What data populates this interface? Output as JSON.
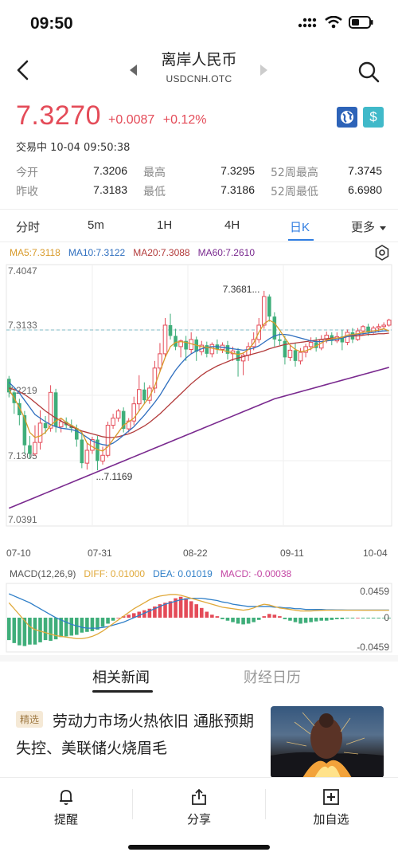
{
  "status_bar": {
    "time": "09:50"
  },
  "nav": {
    "title": "离岸人民币",
    "subtitle": "USDCNH.OTC"
  },
  "quote": {
    "price": "7.3270",
    "change": "+0.0087",
    "change_pct": "+0.12%",
    "trade_status": "交易中 10-04 09:50:38",
    "up_color": "#e44b58",
    "down_color": "#3fae7a"
  },
  "stats": {
    "open_label": "今开",
    "open": "7.3206",
    "high_label": "最高",
    "high": "7.3295",
    "high52_label": "52周最高",
    "high52": "7.3745",
    "prev_close_label": "昨收",
    "prev_close": "7.3183",
    "low_label": "最低",
    "low": "7.3186",
    "low52_label": "52周最低",
    "low52": "6.6980"
  },
  "tabs": {
    "items": [
      "分时",
      "5m",
      "1H",
      "4H",
      "日K",
      "更多"
    ],
    "active": "日K"
  },
  "ma_legend": {
    "ma5": "MA5:7.3118",
    "ma10": "MA10:7.3122",
    "ma20": "MA20:7.3088",
    "ma60": "MA60:7.2610",
    "colors": {
      "ma5": "#d89a2a",
      "ma10": "#2f6fbf",
      "ma20": "#b23a3a",
      "ma60": "#7a2a8f"
    }
  },
  "chart_data": [
    {
      "type": "candlestick",
      "y_tick_labels": [
        "7.4047",
        "7.3133",
        "7.2219",
        "7.1305",
        "7.0391"
      ],
      "ylim": [
        7.0391,
        7.4047
      ],
      "x_tick_labels": [
        "07-10",
        "07-31",
        "08-22",
        "09-11",
        "10-04"
      ],
      "annotations": {
        "max_label": "7.3681...",
        "min_label": "...7.1169",
        "last_price_line": 7.3133
      },
      "candles": [
        {
          "o": 7.245,
          "c": 7.226,
          "h": 7.249,
          "l": 7.219
        },
        {
          "o": 7.226,
          "c": 7.211,
          "h": 7.232,
          "l": 7.196
        },
        {
          "o": 7.211,
          "c": 7.194,
          "h": 7.217,
          "l": 7.18
        },
        {
          "o": 7.194,
          "c": 7.152,
          "h": 7.2,
          "l": 7.14
        },
        {
          "o": 7.152,
          "c": 7.14,
          "h": 7.165,
          "l": 7.133
        },
        {
          "o": 7.14,
          "c": 7.156,
          "h": 7.18,
          "l": 7.137
        },
        {
          "o": 7.156,
          "c": 7.183,
          "h": 7.201,
          "l": 7.146
        },
        {
          "o": 7.183,
          "c": 7.176,
          "h": 7.193,
          "l": 7.168
        },
        {
          "o": 7.176,
          "c": 7.226,
          "h": 7.236,
          "l": 7.171
        },
        {
          "o": 7.226,
          "c": 7.178,
          "h": 7.231,
          "l": 7.17
        },
        {
          "o": 7.178,
          "c": 7.185,
          "h": 7.19,
          "l": 7.17
        },
        {
          "o": 7.185,
          "c": 7.18,
          "h": 7.191,
          "l": 7.176
        },
        {
          "o": 7.18,
          "c": 7.176,
          "h": 7.188,
          "l": 7.17
        },
        {
          "o": 7.176,
          "c": 7.16,
          "h": 7.181,
          "l": 7.15
        },
        {
          "o": 7.16,
          "c": 7.127,
          "h": 7.171,
          "l": 7.12
        },
        {
          "o": 7.127,
          "c": 7.145,
          "h": 7.155,
          "l": 7.118
        },
        {
          "o": 7.145,
          "c": 7.16,
          "h": 7.164,
          "l": 7.14
        },
        {
          "o": 7.16,
          "c": 7.13,
          "h": 7.165,
          "l": 7.117
        },
        {
          "o": 7.13,
          "c": 7.138,
          "h": 7.15,
          "l": 7.125
        },
        {
          "o": 7.138,
          "c": 7.18,
          "h": 7.185,
          "l": 7.135
        },
        {
          "o": 7.18,
          "c": 7.19,
          "h": 7.196,
          "l": 7.175
        },
        {
          "o": 7.19,
          "c": 7.2,
          "h": 7.203,
          "l": 7.185
        },
        {
          "o": 7.2,
          "c": 7.175,
          "h": 7.205,
          "l": 7.17
        },
        {
          "o": 7.175,
          "c": 7.186,
          "h": 7.19,
          "l": 7.17
        },
        {
          "o": 7.186,
          "c": 7.21,
          "h": 7.22,
          "l": 7.18
        },
        {
          "o": 7.21,
          "c": 7.23,
          "h": 7.25,
          "l": 7.2
        },
        {
          "o": 7.23,
          "c": 7.215,
          "h": 7.24,
          "l": 7.21
        },
        {
          "o": 7.215,
          "c": 7.232,
          "h": 7.236,
          "l": 7.21
        },
        {
          "o": 7.232,
          "c": 7.26,
          "h": 7.27,
          "l": 7.225
        },
        {
          "o": 7.26,
          "c": 7.28,
          "h": 7.295,
          "l": 7.255
        },
        {
          "o": 7.28,
          "c": 7.32,
          "h": 7.33,
          "l": 7.275
        },
        {
          "o": 7.32,
          "c": 7.305,
          "h": 7.336,
          "l": 7.3
        },
        {
          "o": 7.305,
          "c": 7.29,
          "h": 7.315,
          "l": 7.285
        },
        {
          "o": 7.29,
          "c": 7.298,
          "h": 7.3,
          "l": 7.275
        },
        {
          "o": 7.298,
          "c": 7.286,
          "h": 7.305,
          "l": 7.27
        },
        {
          "o": 7.286,
          "c": 7.3,
          "h": 7.31,
          "l": 7.28
        },
        {
          "o": 7.3,
          "c": 7.283,
          "h": 7.304,
          "l": 7.27
        },
        {
          "o": 7.283,
          "c": 7.292,
          "h": 7.298,
          "l": 7.278
        },
        {
          "o": 7.292,
          "c": 7.28,
          "h": 7.297,
          "l": 7.275
        },
        {
          "o": 7.28,
          "c": 7.293,
          "h": 7.296,
          "l": 7.275
        },
        {
          "o": 7.293,
          "c": 7.286,
          "h": 7.3,
          "l": 7.28
        },
        {
          "o": 7.286,
          "c": 7.292,
          "h": 7.296,
          "l": 7.281
        },
        {
          "o": 7.292,
          "c": 7.28,
          "h": 7.298,
          "l": 7.272
        },
        {
          "o": 7.28,
          "c": 7.284,
          "h": 7.29,
          "l": 7.27
        },
        {
          "o": 7.284,
          "c": 7.27,
          "h": 7.288,
          "l": 7.248
        },
        {
          "o": 7.27,
          "c": 7.278,
          "h": 7.282,
          "l": 7.25
        },
        {
          "o": 7.278,
          "c": 7.29,
          "h": 7.296,
          "l": 7.27
        },
        {
          "o": 7.29,
          "c": 7.3,
          "h": 7.31,
          "l": 7.285
        },
        {
          "o": 7.3,
          "c": 7.32,
          "h": 7.33,
          "l": 7.295
        },
        {
          "o": 7.32,
          "c": 7.36,
          "h": 7.368,
          "l": 7.315
        },
        {
          "o": 7.36,
          "c": 7.332,
          "h": 7.363,
          "l": 7.325
        },
        {
          "o": 7.332,
          "c": 7.3,
          "h": 7.338,
          "l": 7.29
        },
        {
          "o": 7.3,
          "c": 7.298,
          "h": 7.31,
          "l": 7.292
        },
        {
          "o": 7.298,
          "c": 7.275,
          "h": 7.305,
          "l": 7.265
        },
        {
          "o": 7.275,
          "c": 7.285,
          "h": 7.292,
          "l": 7.27
        },
        {
          "o": 7.285,
          "c": 7.27,
          "h": 7.295,
          "l": 7.262
        },
        {
          "o": 7.27,
          "c": 7.282,
          "h": 7.288,
          "l": 7.265
        },
        {
          "o": 7.282,
          "c": 7.29,
          "h": 7.294,
          "l": 7.275
        },
        {
          "o": 7.29,
          "c": 7.296,
          "h": 7.303,
          "l": 7.285
        },
        {
          "o": 7.296,
          "c": 7.288,
          "h": 7.303,
          "l": 7.283
        },
        {
          "o": 7.288,
          "c": 7.3,
          "h": 7.306,
          "l": 7.285
        },
        {
          "o": 7.3,
          "c": 7.306,
          "h": 7.311,
          "l": 7.295
        },
        {
          "o": 7.306,
          "c": 7.298,
          "h": 7.31,
          "l": 7.292
        },
        {
          "o": 7.298,
          "c": 7.304,
          "h": 7.31,
          "l": 7.295
        },
        {
          "o": 7.304,
          "c": 7.296,
          "h": 7.313,
          "l": 7.285
        },
        {
          "o": 7.296,
          "c": 7.31,
          "h": 7.314,
          "l": 7.292
        },
        {
          "o": 7.31,
          "c": 7.3,
          "h": 7.316,
          "l": 7.295
        },
        {
          "o": 7.3,
          "c": 7.312,
          "h": 7.316,
          "l": 7.298
        },
        {
          "o": 7.312,
          "c": 7.318,
          "h": 7.32,
          "l": 7.306
        },
        {
          "o": 7.318,
          "c": 7.31,
          "h": 7.322,
          "l": 7.305
        },
        {
          "o": 7.31,
          "c": 7.316,
          "h": 7.319,
          "l": 7.307
        },
        {
          "o": 7.316,
          "c": 7.318,
          "h": 7.322,
          "l": 7.31
        },
        {
          "o": 7.318,
          "c": 7.32,
          "h": 7.324,
          "l": 7.314
        },
        {
          "o": 7.32,
          "c": 7.327,
          "h": 7.329,
          "l": 7.318
        }
      ],
      "ma": {
        "ma5": [
          7.23,
          7.218,
          7.205,
          7.19,
          7.17,
          7.163,
          7.165,
          7.17,
          7.18,
          7.186,
          7.19,
          7.184,
          7.18,
          7.176,
          7.17,
          7.155,
          7.15,
          7.146,
          7.144,
          7.15,
          7.16,
          7.17,
          7.18,
          7.185,
          7.19,
          7.2,
          7.21,
          7.22,
          7.235,
          7.255,
          7.275,
          7.29,
          7.296,
          7.297,
          7.296,
          7.294,
          7.292,
          7.29,
          7.289,
          7.288,
          7.286,
          7.285,
          7.283,
          7.281,
          7.279,
          7.281,
          7.286,
          7.295,
          7.31,
          7.322,
          7.327,
          7.323,
          7.313,
          7.302,
          7.292,
          7.286,
          7.283,
          7.284,
          7.287,
          7.291,
          7.295,
          7.299,
          7.301,
          7.302,
          7.303,
          7.306,
          7.307,
          7.308,
          7.31,
          7.311,
          7.312,
          7.313,
          7.315,
          7.3118
        ],
        "ma10": [
          7.24,
          7.233,
          7.225,
          7.215,
          7.205,
          7.195,
          7.19,
          7.185,
          7.181,
          7.178,
          7.176,
          7.175,
          7.174,
          7.172,
          7.168,
          7.163,
          7.158,
          7.155,
          7.153,
          7.152,
          7.155,
          7.16,
          7.166,
          7.172,
          7.178,
          7.186,
          7.194,
          7.203,
          7.212,
          7.222,
          7.234,
          7.246,
          7.257,
          7.266,
          7.274,
          7.28,
          7.284,
          7.287,
          7.289,
          7.29,
          7.29,
          7.289,
          7.288,
          7.287,
          7.286,
          7.285,
          7.286,
          7.288,
          7.291,
          7.296,
          7.301,
          7.305,
          7.307,
          7.307,
          7.306,
          7.304,
          7.302,
          7.3,
          7.298,
          7.297,
          7.297,
          7.298,
          7.299,
          7.3,
          7.302,
          7.304,
          7.306,
          7.307,
          7.308,
          7.309,
          7.31,
          7.311,
          7.312,
          7.3122
        ],
        "ma20": [
          7.232,
          7.23,
          7.227,
          7.223,
          7.218,
          7.212,
          7.206,
          7.2,
          7.195,
          7.19,
          7.186,
          7.182,
          7.178,
          7.175,
          7.172,
          7.17,
          7.168,
          7.166,
          7.164,
          7.163,
          7.163,
          7.164,
          7.166,
          7.168,
          7.171,
          7.175,
          7.179,
          7.184,
          7.19,
          7.196,
          7.203,
          7.21,
          7.217,
          7.224,
          7.231,
          7.238,
          7.244,
          7.25,
          7.255,
          7.259,
          7.263,
          7.266,
          7.269,
          7.272,
          7.274,
          7.276,
          7.278,
          7.28,
          7.282,
          7.284,
          7.287,
          7.289,
          7.291,
          7.293,
          7.294,
          7.295,
          7.296,
          7.297,
          7.298,
          7.299,
          7.3,
          7.301,
          7.302,
          7.302,
          7.303,
          7.304,
          7.305,
          7.305,
          7.306,
          7.307,
          7.307,
          7.308,
          7.308,
          7.3088
        ],
        "ma60": [
          7.064,
          7.067,
          7.07,
          7.073,
          7.076,
          7.079,
          7.082,
          7.085,
          7.088,
          7.091,
          7.094,
          7.097,
          7.1,
          7.103,
          7.106,
          7.109,
          7.112,
          7.115,
          7.118,
          7.121,
          7.124,
          7.127,
          7.13,
          7.133,
          7.136,
          7.139,
          7.142,
          7.145,
          7.148,
          7.151,
          7.154,
          7.157,
          7.16,
          7.163,
          7.166,
          7.169,
          7.172,
          7.175,
          7.178,
          7.181,
          7.184,
          7.187,
          7.19,
          7.193,
          7.196,
          7.199,
          7.202,
          7.205,
          7.208,
          7.211,
          7.214,
          7.217,
          7.219,
          7.221,
          7.223,
          7.225,
          7.227,
          7.229,
          7.231,
          7.233,
          7.235,
          7.237,
          7.239,
          7.241,
          7.243,
          7.245,
          7.247,
          7.249,
          7.251,
          7.253,
          7.255,
          7.257,
          7.259,
          7.261
        ]
      }
    },
    {
      "type": "bar",
      "title": "MACD(12,26,9)",
      "diff_label": "DIFF: 0.01000",
      "dea_label": "DEA: 0.01019",
      "macd_label": "MACD: -0.00038",
      "y_tick_labels": [
        "0.0459",
        "0",
        "-0.0459"
      ],
      "ylim": [
        -0.0459,
        0.0459
      ],
      "diff_color": "#e0a93a",
      "dea_color": "#2f7fc8",
      "macd_label_color": "#c447a4",
      "histogram": [
        -0.03,
        -0.034,
        -0.037,
        -0.038,
        -0.036,
        -0.036,
        -0.033,
        -0.03,
        -0.031,
        -0.029,
        -0.026,
        -0.025,
        -0.024,
        -0.023,
        -0.02,
        -0.019,
        -0.018,
        -0.016,
        -0.012,
        -0.008,
        -0.004,
        0.0,
        0.002,
        0.004,
        0.006,
        0.008,
        0.01,
        0.012,
        0.015,
        0.018,
        0.02,
        0.022,
        0.026,
        0.028,
        0.026,
        0.022,
        0.018,
        0.013,
        0.008,
        0.004,
        0.002,
        -0.002,
        -0.004,
        -0.006,
        -0.008,
        -0.009,
        -0.008,
        -0.006,
        -0.003,
        0.002,
        0.005,
        0.004,
        0.002,
        -0.002,
        -0.004,
        -0.006,
        -0.008,
        -0.007,
        -0.006,
        -0.005,
        -0.004,
        -0.004,
        -0.003,
        -0.002,
        -0.002,
        -0.001,
        -0.001,
        0.0,
        -0.001,
        -0.001,
        -0.001,
        -0.001,
        -0.0005,
        -0.0004
      ],
      "diff": [
        0.02,
        0.012,
        0.004,
        -0.004,
        -0.012,
        -0.016,
        -0.018,
        -0.02,
        -0.022,
        -0.024,
        -0.025,
        -0.026,
        -0.027,
        -0.028,
        -0.028,
        -0.027,
        -0.025,
        -0.022,
        -0.018,
        -0.013,
        -0.008,
        -0.003,
        0.002,
        0.007,
        0.012,
        0.016,
        0.02,
        0.024,
        0.027,
        0.029,
        0.03,
        0.031,
        0.031,
        0.03,
        0.028,
        0.026,
        0.024,
        0.022,
        0.02,
        0.018,
        0.016,
        0.014,
        0.013,
        0.012,
        0.011,
        0.01,
        0.011,
        0.013,
        0.016,
        0.018,
        0.017,
        0.015,
        0.013,
        0.012,
        0.011,
        0.01,
        0.009,
        0.009,
        0.009,
        0.0095,
        0.0098,
        0.01,
        0.01,
        0.01,
        0.01,
        0.01,
        0.01,
        0.01,
        0.01,
        0.01,
        0.01,
        0.01,
        0.01,
        0.01
      ],
      "dea": [
        0.032,
        0.029,
        0.026,
        0.023,
        0.02,
        0.016,
        0.012,
        0.008,
        0.004,
        0.0,
        -0.003,
        -0.006,
        -0.009,
        -0.011,
        -0.013,
        -0.014,
        -0.014,
        -0.014,
        -0.013,
        -0.012,
        -0.01,
        -0.008,
        -0.006,
        -0.003,
        0.0,
        0.003,
        0.006,
        0.009,
        0.012,
        0.015,
        0.018,
        0.02,
        0.022,
        0.024,
        0.025,
        0.026,
        0.026,
        0.026,
        0.025,
        0.024,
        0.023,
        0.021,
        0.02,
        0.018,
        0.017,
        0.016,
        0.015,
        0.015,
        0.015,
        0.015,
        0.015,
        0.014,
        0.014,
        0.013,
        0.013,
        0.012,
        0.012,
        0.011,
        0.011,
        0.011,
        0.011,
        0.0105,
        0.0105,
        0.0104,
        0.0104,
        0.0103,
        0.0103,
        0.0103,
        0.0102,
        0.0102,
        0.0102,
        0.0102,
        0.0102,
        0.01019
      ]
    }
  ],
  "news": {
    "tabs": [
      "相关新闻",
      "财经日历"
    ],
    "active_tab": "相关新闻",
    "tag": "精选",
    "title": "劳动力市场火热依旧 通胀预期失控、美联储火烧眉毛"
  },
  "bottom_bar": {
    "remind": "提醒",
    "share": "分享",
    "watchlist": "加自选"
  }
}
